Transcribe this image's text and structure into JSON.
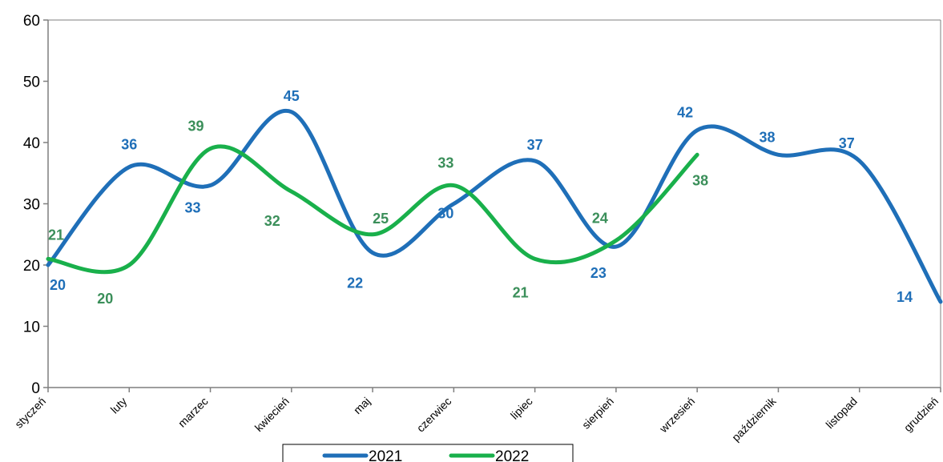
{
  "chart_data": {
    "type": "line",
    "categories": [
      "styczeń",
      "luty",
      "marzec",
      "kwiecień",
      "maj",
      "czerwiec",
      "lipiec",
      "sierpień",
      "wrzesień",
      "październik",
      "listopad",
      "grudzień"
    ],
    "series": [
      {
        "name": "2021",
        "values": [
          20,
          36,
          33,
          45,
          22,
          30,
          37,
          23,
          42,
          38,
          37,
          14
        ],
        "color": "#1f6fb8"
      },
      {
        "name": "2022",
        "values": [
          21,
          20,
          39,
          32,
          25,
          33,
          21,
          24,
          38,
          null,
          null,
          null
        ],
        "color": "#19b04b"
      }
    ],
    "data_label_colors": {
      "2021": "#1f6fb8",
      "2022": "#3b8f5a"
    },
    "ylim": [
      0,
      60
    ],
    "yticks": [
      0,
      10,
      20,
      30,
      40,
      50,
      60
    ],
    "smooth": true,
    "grid": false,
    "legend_position": "bottom",
    "title": "",
    "xlabel": "",
    "ylabel": ""
  }
}
